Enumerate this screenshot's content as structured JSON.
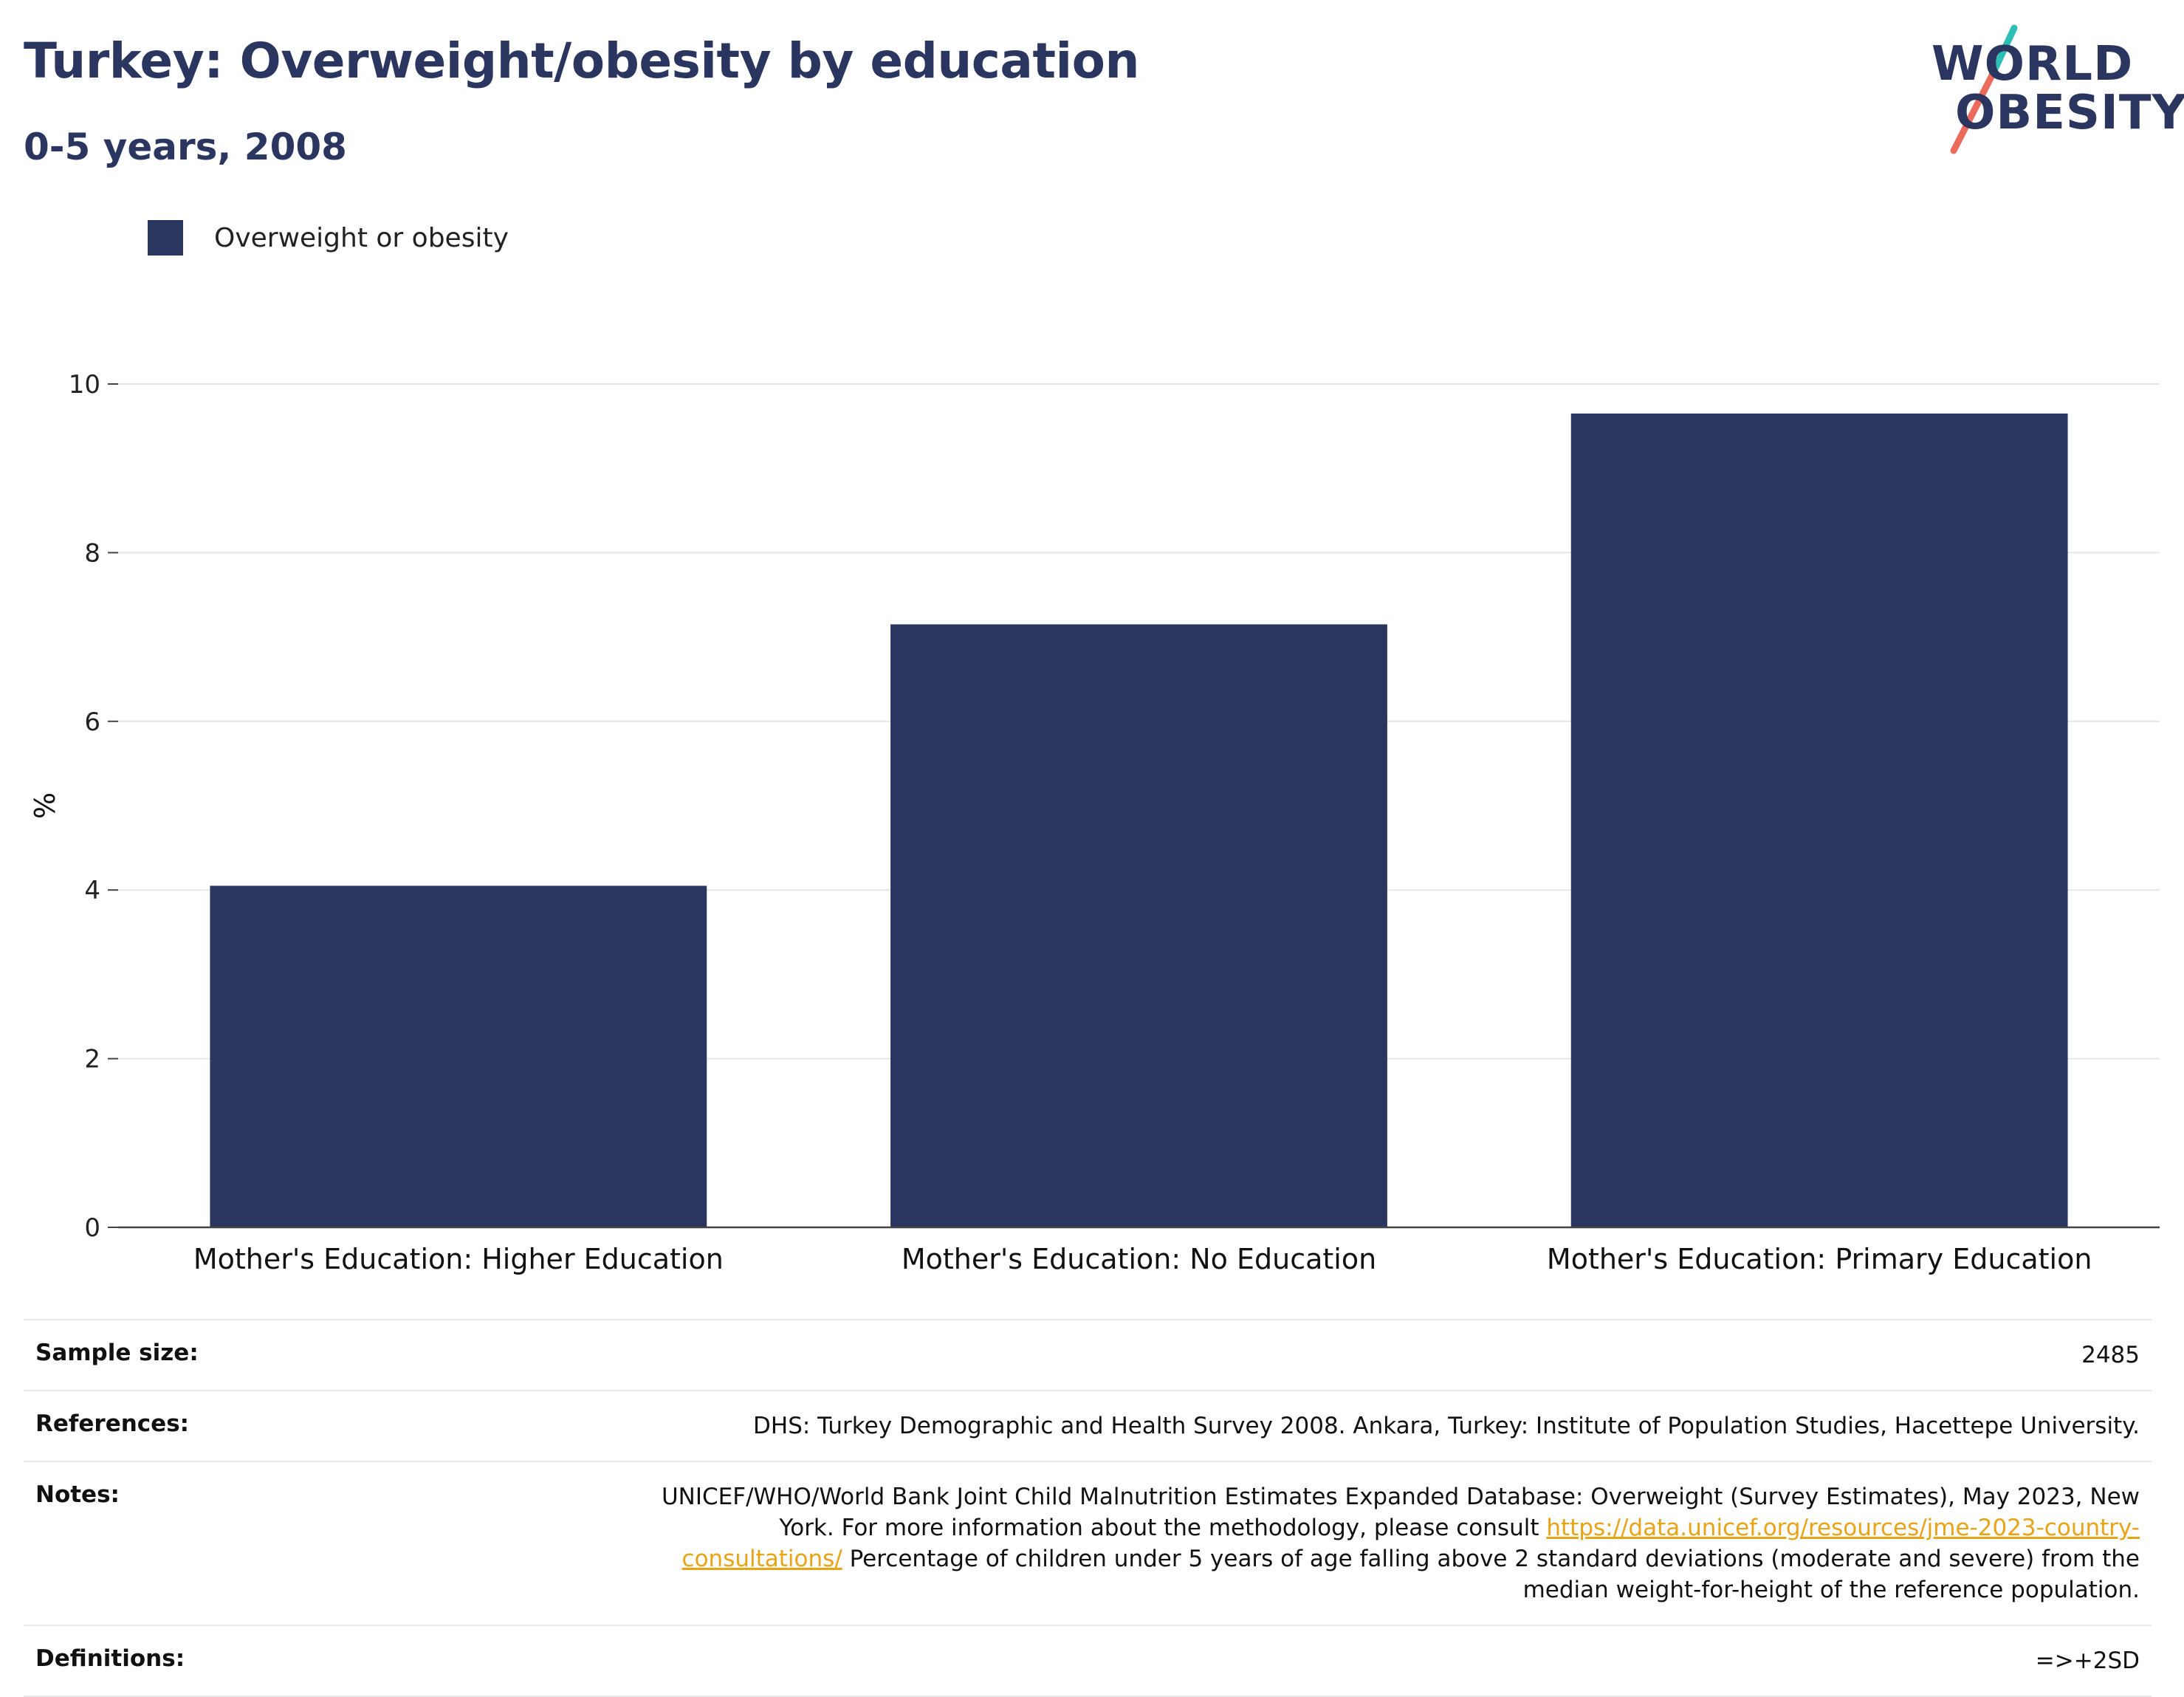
{
  "header": {
    "title": "Turkey: Overweight/obesity by education",
    "subtitle": "0-5 years, 2008"
  },
  "logo": {
    "line1": "WORLD",
    "line2": "OBESITY",
    "colors": {
      "navy": "#2a3560",
      "teal": "#2bbfb6",
      "coral": "#ec6a5c"
    }
  },
  "legend": {
    "label": "Overweight or obesity",
    "color": "#2a3560"
  },
  "chart_data": {
    "type": "bar",
    "categories": [
      "Mother's Education: Higher Education",
      "Mother's Education: No Education",
      "Mother's Education: Primary Education"
    ],
    "series": [
      {
        "name": "Overweight or obesity",
        "values": [
          4.05,
          7.15,
          9.65
        ],
        "color": "#2a3560"
      }
    ],
    "ylabel": "%",
    "ylim": [
      0,
      10
    ],
    "yticks": [
      0,
      2,
      4,
      6,
      8,
      10
    ],
    "grid": true,
    "legend_position": "top-left"
  },
  "info": {
    "sample_size": {
      "label": "Sample size:",
      "value": "2485"
    },
    "references": {
      "label": "References:",
      "value": "DHS: Turkey Demographic and Health Survey 2008. Ankara, Turkey: Institute of Population Studies, Hacettepe University."
    },
    "notes": {
      "label": "Notes:",
      "text_before": "UNICEF/WHO/World Bank Joint Child Malnutrition Estimates Expanded Database: Overweight (Survey Estimates), May 2023, New York. For more information about the methodology, please consult ",
      "link": "https://data.unicef.org/resources/jme-2023-country-consultations/",
      "text_after": " Percentage of children under 5 years of age falling above 2 standard deviations (moderate and severe) from the median weight-for-height of the reference population."
    },
    "definitions": {
      "label": "Definitions:",
      "value": "=>+2SD"
    }
  }
}
